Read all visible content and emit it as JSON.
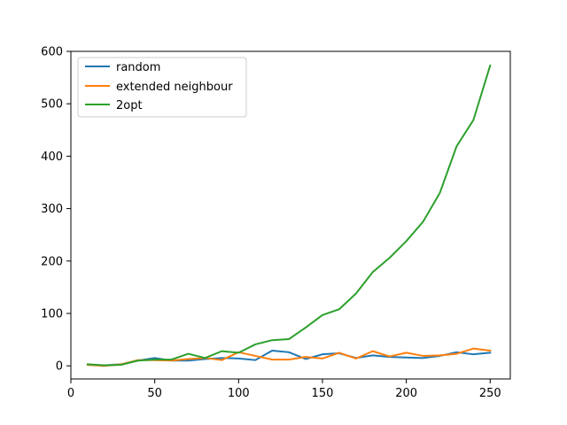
{
  "chart_data": {
    "type": "line",
    "title": "",
    "xlabel": "",
    "ylabel": "",
    "xlim": [
      0,
      262
    ],
    "ylim": [
      -25,
      600
    ],
    "xticks": [
      0,
      50,
      100,
      150,
      200,
      250
    ],
    "yticks": [
      0,
      100,
      200,
      300,
      400,
      500,
      600
    ],
    "grid": false,
    "legend_position": "top-left",
    "x": [
      10,
      20,
      30,
      40,
      50,
      60,
      70,
      80,
      90,
      100,
      110,
      120,
      130,
      140,
      150,
      160,
      170,
      180,
      190,
      200,
      210,
      220,
      230,
      240,
      250
    ],
    "series": [
      {
        "name": "random",
        "color": "#1f77b4",
        "values": [
          2,
          1,
          3,
          10,
          15,
          10,
          10,
          13,
          15,
          14,
          11,
          29,
          26,
          13,
          22,
          24,
          15,
          20,
          17,
          16,
          15,
          19,
          26,
          22,
          25
        ]
      },
      {
        "name": "extended neighbour",
        "color": "#ff7f0e",
        "values": [
          2,
          0,
          3,
          11,
          11,
          10,
          13,
          15,
          11,
          26,
          19,
          12,
          12,
          17,
          14,
          25,
          14,
          28,
          18,
          25,
          19,
          20,
          23,
          33,
          29
        ]
      },
      {
        "name": "2opt",
        "color": "#2ca02c",
        "values": [
          3,
          1,
          2,
          10,
          12,
          12,
          23,
          15,
          28,
          25,
          41,
          49,
          51,
          73,
          97,
          108,
          138,
          179,
          206,
          238,
          275,
          330,
          419,
          469,
          573
        ]
      }
    ]
  }
}
